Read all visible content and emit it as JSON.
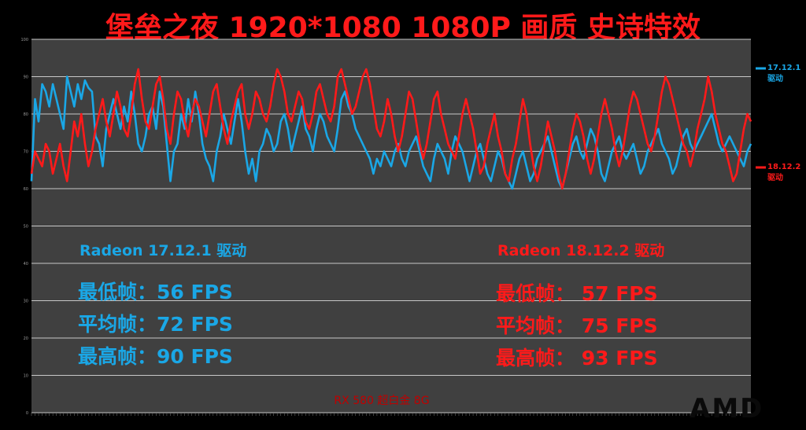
{
  "title": "堡垒之夜 1920*1080 1080P 画质 史诗特效",
  "chart_data": {
    "type": "line",
    "ylim": [
      0,
      100
    ],
    "yticks": [
      0,
      10,
      20,
      30,
      40,
      50,
      60,
      70,
      80,
      90,
      100
    ],
    "grid": true,
    "legend": "right",
    "series": [
      {
        "name": "17.12.1 驱动",
        "color": "#1aa7e6",
        "values": [
          62,
          84,
          78,
          88,
          86,
          82,
          88,
          84,
          80,
          76,
          90,
          86,
          82,
          88,
          84,
          89,
          87,
          86,
          74,
          72,
          66,
          76,
          80,
          84,
          80,
          76,
          82,
          78,
          86,
          80,
          72,
          70,
          74,
          80,
          82,
          76,
          86,
          82,
          72,
          62,
          70,
          72,
          80,
          76,
          84,
          78,
          86,
          80,
          72,
          68,
          66,
          62,
          70,
          74,
          80,
          76,
          72,
          78,
          84,
          78,
          70,
          64,
          68,
          62,
          70,
          72,
          76,
          74,
          70,
          72,
          78,
          80,
          76,
          70,
          74,
          78,
          82,
          76,
          74,
          70,
          76,
          80,
          78,
          74,
          72,
          70,
          76,
          84,
          86,
          82,
          80,
          76,
          74,
          72,
          70,
          68,
          64,
          68,
          66,
          70,
          68,
          66,
          70,
          72,
          68,
          66,
          70,
          72,
          74,
          70,
          66,
          64,
          62,
          68,
          72,
          70,
          68,
          64,
          70,
          74,
          72,
          70,
          66,
          62,
          66,
          70,
          72,
          68,
          64,
          62,
          66,
          70,
          68,
          64,
          62,
          60,
          64,
          68,
          70,
          66,
          62,
          64,
          68,
          70,
          72,
          74,
          70,
          66,
          62,
          60,
          64,
          68,
          72,
          74,
          70,
          68,
          72,
          76,
          74,
          70,
          64,
          62,
          66,
          70,
          72,
          74,
          70,
          68,
          70,
          72,
          68,
          64,
          66,
          70,
          72,
          74,
          76,
          72,
          70,
          68,
          64,
          66,
          70,
          74,
          76,
          72,
          70,
          72,
          74,
          76,
          78,
          80,
          76,
          72,
          70,
          72,
          74,
          72,
          70,
          68,
          66,
          70,
          72
        ],
        "min_label": "最低帧：56  FPS",
        "avg_label": "平均帧：72  FPS",
        "max_label": "最高帧：90  FPS",
        "driver_label": "Radeon 17.12.1 驱动"
      },
      {
        "name": "18.12.2 驱动",
        "color": "#ff1a1a",
        "values": [
          64,
          70,
          68,
          66,
          72,
          70,
          64,
          68,
          72,
          66,
          62,
          70,
          78,
          74,
          80,
          72,
          66,
          70,
          76,
          80,
          84,
          78,
          74,
          80,
          86,
          82,
          76,
          74,
          80,
          88,
          92,
          84,
          78,
          76,
          82,
          88,
          90,
          84,
          76,
          72,
          80,
          86,
          84,
          78,
          74,
          80,
          84,
          82,
          78,
          74,
          80,
          86,
          88,
          82,
          76,
          72,
          78,
          82,
          86,
          88,
          80,
          76,
          80,
          86,
          84,
          80,
          78,
          82,
          88,
          92,
          90,
          86,
          80,
          78,
          82,
          86,
          84,
          78,
          76,
          80,
          86,
          88,
          84,
          80,
          78,
          82,
          90,
          92,
          88,
          84,
          80,
          82,
          86,
          90,
          92,
          88,
          82,
          76,
          74,
          78,
          84,
          80,
          74,
          70,
          74,
          80,
          86,
          84,
          78,
          72,
          68,
          72,
          78,
          84,
          86,
          80,
          76,
          72,
          70,
          68,
          74,
          80,
          84,
          80,
          76,
          70,
          64,
          66,
          72,
          76,
          80,
          74,
          70,
          64,
          62,
          68,
          72,
          78,
          84,
          80,
          72,
          66,
          62,
          66,
          72,
          78,
          74,
          70,
          64,
          60,
          64,
          70,
          76,
          80,
          78,
          74,
          68,
          64,
          68,
          74,
          80,
          84,
          80,
          76,
          70,
          66,
          70,
          76,
          82,
          86,
          84,
          80,
          76,
          72,
          70,
          74,
          80,
          86,
          90,
          88,
          84,
          80,
          76,
          72,
          70,
          66,
          70,
          76,
          80,
          84,
          90,
          86,
          80,
          76,
          72,
          70,
          66,
          62,
          64,
          70,
          76,
          80,
          78
        ],
        "min_label": "最低帧：  57  FPS",
        "avg_label": "平均帧：  75  FPS",
        "max_label": "最高帧：  93  FPS",
        "driver_label": "Radeon 18.12.2 驱动"
      }
    ]
  },
  "legend": {
    "blue_line1": "17.12.1",
    "blue_line2": "驱动",
    "red_line1": "18.12.2",
    "red_line2": "驱动"
  },
  "footer": "RX 580  超白金  8G",
  "logo": "AMD"
}
